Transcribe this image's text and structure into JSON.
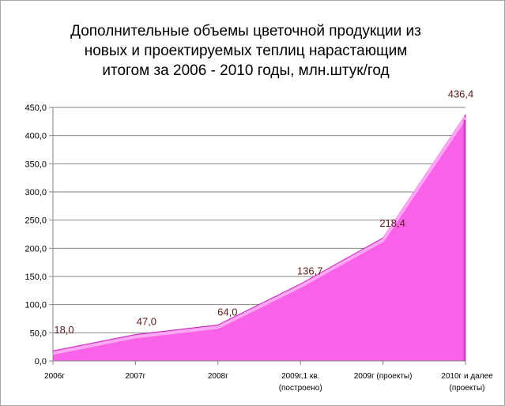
{
  "chart_data": {
    "type": "area",
    "title_lines": [
      "Дополнительные объемы цветочной продукции из",
      "новых и проектируемых теплиц нарастающим",
      "итогом за 2006 - 2010 годы, млн.штук/год"
    ],
    "categories": [
      [
        "2006г"
      ],
      [
        "2007г"
      ],
      [
        "2008г"
      ],
      [
        "2009г,1 кв.",
        "(построено)"
      ],
      [
        "2009г (проекты)"
      ],
      [
        "2010г и далее",
        "(проекты)"
      ]
    ],
    "values": [
      18.0,
      47.0,
      64.0,
      136.7,
      218.4,
      436.4
    ],
    "value_labels": [
      "18,0",
      "47,0",
      "64,0",
      "136,7",
      "218,4",
      "436,4"
    ],
    "ylim": [
      0,
      450
    ],
    "yticks": [
      "0,0",
      "50,0",
      "100,0",
      "150,0",
      "200,0",
      "250,0",
      "300,0",
      "350,0",
      "400,0",
      "450,0"
    ],
    "grid": true,
    "legend": "none",
    "colors": {
      "fill": "#f762e8",
      "fill_highlight": "#fbb0f4",
      "edge": "#c22fb5",
      "data_label": "#5a1a1a",
      "grid": "#868686"
    }
  }
}
